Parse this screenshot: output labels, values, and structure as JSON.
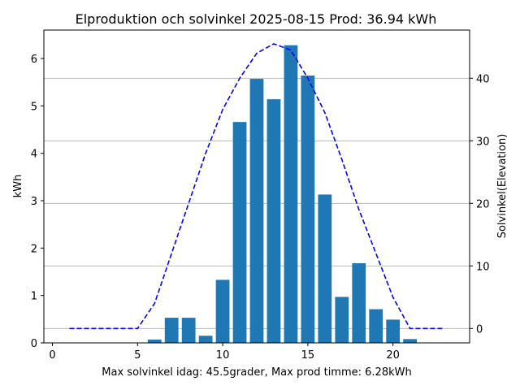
{
  "chart_data": {
    "type": "bar",
    "title": "Elproduktion och solvinkel 2025-08-15 Prod: 36.94 kWh",
    "xlabel": "Max solvinkel idag: 45.5grader, Max prod timme: 6.28kWh",
    "ylabel": "kWh",
    "y2label": "Solvinkel(Elevation)",
    "xlim": [
      -0.5,
      24.5
    ],
    "ylim": [
      0,
      6.6
    ],
    "y2lim": [
      -2.3,
      47.7
    ],
    "x_ticks": [
      0,
      5,
      10,
      15,
      20
    ],
    "y_ticks": [
      0,
      1,
      2,
      3,
      4,
      5,
      6
    ],
    "y2_ticks": [
      0,
      10,
      20,
      30,
      40
    ],
    "grid": "right-axis horizontal",
    "colors": {
      "bar": "#1f77b4",
      "line": "#0000ff",
      "y2label": "#0000ff"
    },
    "bars": {
      "x": [
        6,
        7,
        8,
        9,
        10,
        11,
        12,
        13,
        14,
        15,
        16,
        17,
        18,
        19,
        20,
        21
      ],
      "values": [
        0.07,
        0.53,
        0.53,
        0.15,
        1.33,
        4.66,
        5.57,
        5.14,
        6.28,
        5.64,
        3.13,
        0.97,
        1.68,
        0.71,
        0.49,
        0.08
      ]
    },
    "elevation": {
      "x": [
        1,
        2,
        3,
        4,
        5,
        6,
        7,
        8,
        9,
        10,
        11,
        12,
        13,
        14,
        15,
        16,
        17,
        18,
        19,
        20,
        21,
        22,
        23
      ],
      "values": [
        0,
        0,
        0,
        0,
        0,
        4,
        12,
        20,
        28,
        35,
        40,
        44,
        45.5,
        44.5,
        40,
        34.5,
        27,
        19,
        12,
        5,
        0,
        0,
        0
      ]
    }
  }
}
